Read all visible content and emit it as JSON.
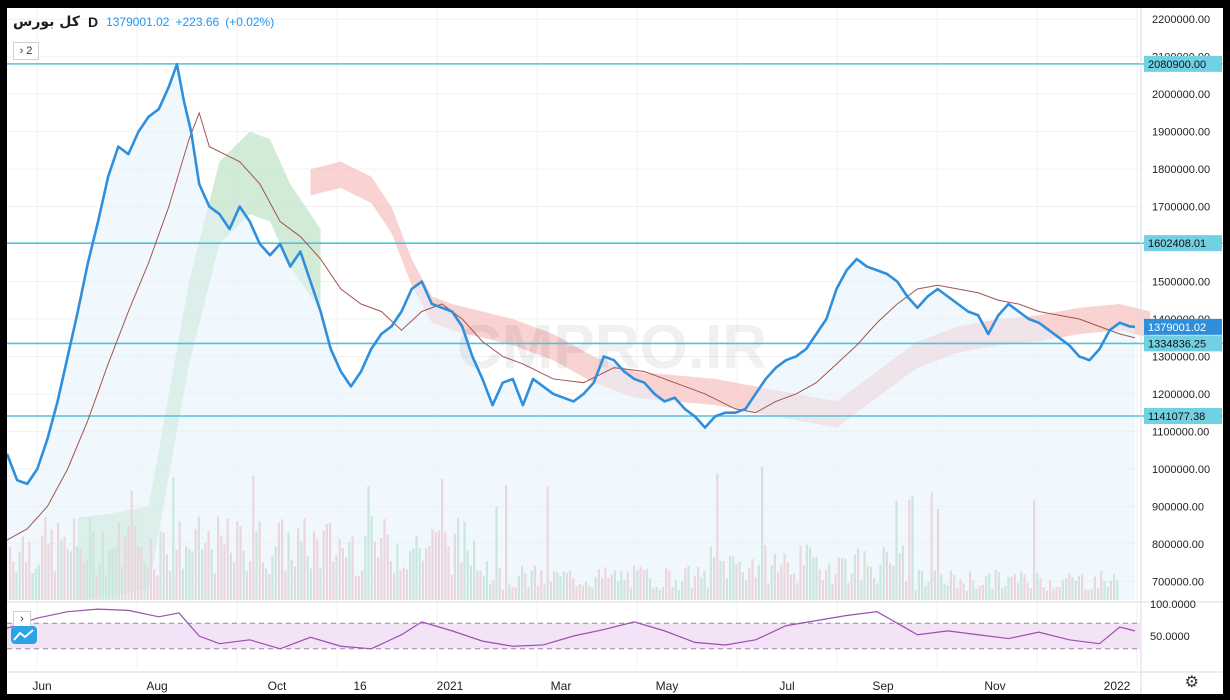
{
  "header": {
    "symbol": "کل بورس",
    "interval": "D",
    "price": "1379001.02",
    "change": "+223.66",
    "change_pct": "(+0.02%)",
    "indicators_count": "2"
  },
  "watermark": "CMPRO.IR",
  "colors": {
    "price_line": "#2f8fdc",
    "kijun_line": "#a3554f",
    "hline": "#4fc3d9",
    "cloud_green": "#bfe3c6",
    "cloud_red": "#f7c3c3",
    "vol_up": "#a8d8b9",
    "vol_down": "#f2b4bb",
    "rsi_line": "#9c4fb0",
    "rsi_band": "#f3e3f6"
  },
  "chart_data": [
    {
      "type": "line",
      "title": "",
      "y_axis_ticks": [
        "2200000.00",
        "2100000.00",
        "2000000.00",
        "1900000.00",
        "1800000.00",
        "1700000.00",
        "1600000.00",
        "1500000.00",
        "1400000.00",
        "1300000.00",
        "1200000.00",
        "1100000.00",
        "1000000.00",
        "900000.00",
        "800000.00",
        "700000.00"
      ],
      "ylim": [
        650000,
        2230000
      ],
      "x_axis_labels": [
        "Jun",
        "Aug",
        "Oct",
        "16",
        "2021",
        "Mar",
        "May",
        "Jul",
        "Sep",
        "Nov",
        "2022"
      ],
      "horizontal_levels": [
        {
          "value": 2080900.0,
          "label": "2080900.00"
        },
        {
          "value": 1602408.01,
          "label": "1602408.01"
        },
        {
          "value": 1334836.25,
          "label": "1334836.25"
        },
        {
          "value": 1141077.38,
          "label": "1141077.38"
        }
      ],
      "last_price_label": "1379001.02",
      "series": [
        {
          "name": "",
          "role": "price",
          "x": [
            0,
            10,
            20,
            30,
            40,
            50,
            60,
            70,
            80,
            90,
            100,
            110,
            120,
            130,
            140,
            150,
            160,
            168,
            175,
            182,
            190,
            200,
            210,
            220,
            230,
            240,
            250,
            260,
            270,
            280,
            290,
            300,
            310,
            320,
            330,
            340,
            350,
            360,
            370,
            380,
            390,
            400,
            410,
            420,
            430,
            440,
            450,
            460,
            470,
            480,
            490,
            500,
            510,
            520,
            530,
            540,
            550,
            560,
            570,
            580,
            590,
            600,
            610,
            620,
            630,
            640,
            650,
            660,
            670,
            680,
            690,
            700,
            710,
            720,
            730,
            740,
            750,
            760,
            770,
            780,
            790,
            800,
            810,
            820,
            830,
            840,
            850,
            860,
            870,
            880,
            890,
            900,
            910,
            920,
            930,
            940,
            950,
            960,
            970,
            980,
            990,
            1000,
            1010,
            1020,
            1030,
            1040,
            1050,
            1060,
            1070,
            1080,
            1090,
            1100,
            1110,
            1115
          ],
          "y": [
            1040000,
            970000,
            960000,
            1000000,
            1080000,
            1180000,
            1300000,
            1420000,
            1550000,
            1660000,
            1780000,
            1860000,
            1840000,
            1900000,
            1940000,
            1960000,
            2020000,
            2080000,
            1980000,
            1900000,
            1760000,
            1700000,
            1680000,
            1640000,
            1700000,
            1660000,
            1600000,
            1570000,
            1600000,
            1540000,
            1580000,
            1500000,
            1420000,
            1320000,
            1260000,
            1220000,
            1260000,
            1320000,
            1360000,
            1380000,
            1420000,
            1480000,
            1500000,
            1440000,
            1430000,
            1420000,
            1380000,
            1300000,
            1240000,
            1170000,
            1230000,
            1240000,
            1170000,
            1240000,
            1220000,
            1200000,
            1190000,
            1180000,
            1200000,
            1230000,
            1300000,
            1290000,
            1260000,
            1240000,
            1230000,
            1200000,
            1180000,
            1190000,
            1160000,
            1140000,
            1110000,
            1140000,
            1150000,
            1150000,
            1160000,
            1200000,
            1240000,
            1270000,
            1290000,
            1300000,
            1320000,
            1360000,
            1400000,
            1480000,
            1530000,
            1560000,
            1540000,
            1530000,
            1520000,
            1500000,
            1460000,
            1430000,
            1460000,
            1480000,
            1460000,
            1440000,
            1420000,
            1410000,
            1360000,
            1410000,
            1440000,
            1420000,
            1400000,
            1390000,
            1370000,
            1350000,
            1330000,
            1300000,
            1290000,
            1320000,
            1370000,
            1390000,
            1380000,
            1379001
          ]
        },
        {
          "name": "",
          "role": "kijun",
          "x": [
            0,
            20,
            40,
            60,
            80,
            100,
            120,
            140,
            160,
            180,
            190,
            200,
            230,
            250,
            270,
            290,
            310,
            330,
            350,
            370,
            390,
            410,
            430,
            450,
            470,
            490,
            510,
            540,
            570,
            600,
            630,
            660,
            690,
            720,
            740,
            760,
            780,
            800,
            820,
            840,
            860,
            880,
            900,
            920,
            940,
            960,
            980,
            1000,
            1020,
            1040,
            1060,
            1080,
            1100,
            1115
          ],
          "y": [
            810000,
            840000,
            900000,
            1000000,
            1130000,
            1280000,
            1420000,
            1550000,
            1700000,
            1880000,
            1950000,
            1860000,
            1820000,
            1760000,
            1660000,
            1620000,
            1560000,
            1480000,
            1440000,
            1420000,
            1370000,
            1420000,
            1440000,
            1400000,
            1340000,
            1300000,
            1280000,
            1240000,
            1230000,
            1270000,
            1260000,
            1230000,
            1200000,
            1160000,
            1150000,
            1180000,
            1200000,
            1230000,
            1280000,
            1330000,
            1390000,
            1440000,
            1480000,
            1490000,
            1480000,
            1470000,
            1450000,
            1440000,
            1420000,
            1410000,
            1400000,
            1380000,
            1360000,
            1350000
          ]
        },
        {
          "name": "",
          "role": "cloud_green_upper",
          "x": [
            70,
            100,
            140,
            180,
            210,
            240,
            260,
            280,
            300,
            310
          ],
          "y": [
            870000,
            880000,
            900000,
            1500000,
            1820000,
            1900000,
            1880000,
            1760000,
            1680000,
            1640000
          ]
        },
        {
          "name": "",
          "role": "cloud_red",
          "x": [
            300,
            330,
            360,
            380,
            400,
            420,
            440,
            470,
            500,
            540,
            580,
            620,
            660,
            700,
            740,
            780,
            820,
            860,
            900,
            940,
            980,
            1020,
            1060,
            1100,
            1130
          ],
          "y": [
            1800000,
            1820000,
            1780000,
            1700000,
            1560000,
            1460000,
            1440000,
            1420000,
            1400000,
            1360000,
            1300000,
            1260000,
            1250000,
            1240000,
            1220000,
            1200000,
            1180000,
            1260000,
            1340000,
            1380000,
            1400000,
            1410000,
            1430000,
            1440000,
            1420000
          ]
        }
      ]
    },
    {
      "type": "bar",
      "role": "volume",
      "ylim": [
        0,
        100
      ],
      "note_values": "relative heights"
    },
    {
      "type": "line",
      "role": "RSI",
      "y_axis_ticks": [
        "100.0000",
        "50.0000"
      ],
      "levels": [
        70,
        30
      ],
      "ylim": [
        0,
        100
      ],
      "x": [
        0,
        30,
        60,
        90,
        120,
        150,
        170,
        190,
        210,
        240,
        270,
        300,
        330,
        360,
        390,
        410,
        440,
        470,
        500,
        530,
        560,
        590,
        620,
        650,
        680,
        710,
        740,
        770,
        800,
        830,
        860,
        880,
        900,
        930,
        960,
        990,
        1020,
        1050,
        1080,
        1100,
        1115
      ],
      "y": [
        62,
        78,
        88,
        92,
        90,
        80,
        86,
        50,
        38,
        44,
        30,
        48,
        34,
        30,
        52,
        72,
        58,
        42,
        34,
        36,
        50,
        60,
        72,
        58,
        40,
        36,
        44,
        66,
        74,
        82,
        88,
        70,
        52,
        58,
        52,
        46,
        56,
        44,
        38,
        64,
        58
      ]
    }
  ],
  "rsi_panel": {
    "tick_100": "100.0000",
    "tick_50": "50.0000"
  }
}
